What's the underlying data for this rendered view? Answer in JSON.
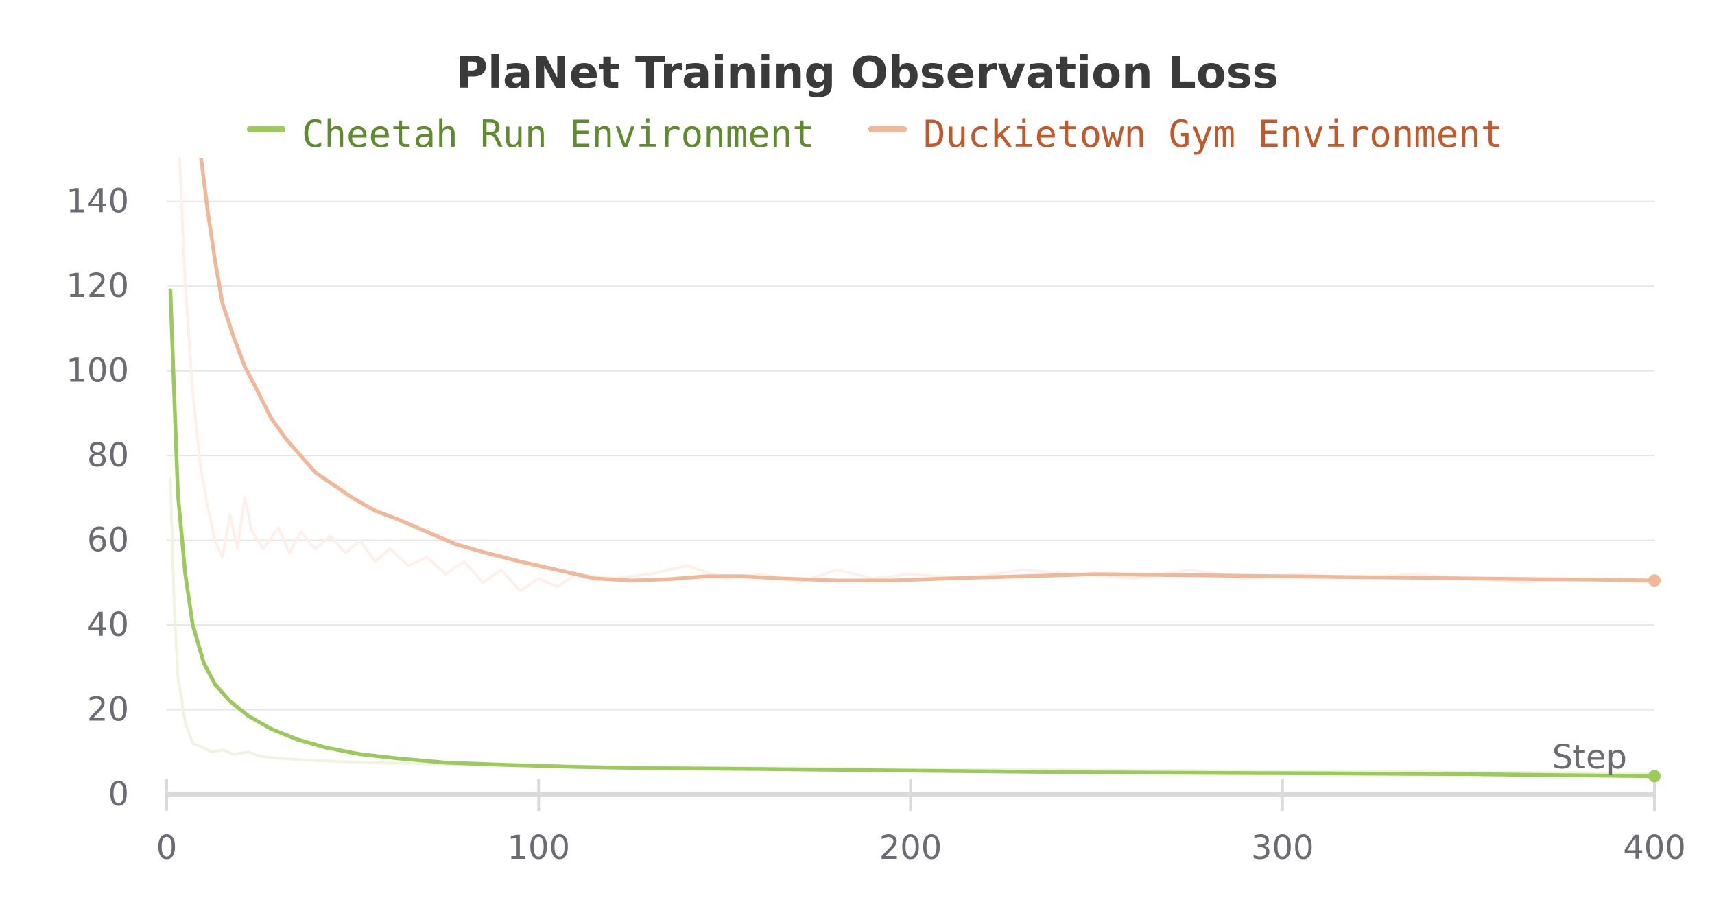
{
  "chart_data": {
    "type": "line",
    "title": "PlaNet Training Observation Loss",
    "xlabel": "Step",
    "ylabel": "",
    "xlim": [
      0,
      400
    ],
    "ylim": [
      0,
      150
    ],
    "x_ticks": [
      0,
      100,
      200,
      300,
      400
    ],
    "y_ticks": [
      0,
      20,
      40,
      60,
      80,
      100,
      120,
      140
    ],
    "grid": true,
    "legend_position": "top",
    "series": [
      {
        "name": "Cheetah Run Environment",
        "color": "#9bc95b",
        "text_color": "#5f8a2e",
        "raw_color": "#eef4e0",
        "smoothed": [
          [
            1,
            119
          ],
          [
            3,
            71
          ],
          [
            5,
            52
          ],
          [
            7,
            40
          ],
          [
            10,
            31
          ],
          [
            13,
            26
          ],
          [
            17,
            22
          ],
          [
            22,
            18.5
          ],
          [
            28,
            15.5
          ],
          [
            35,
            13
          ],
          [
            43,
            11
          ],
          [
            52,
            9.5
          ],
          [
            62,
            8.5
          ],
          [
            75,
            7.5
          ],
          [
            90,
            7
          ],
          [
            110,
            6.5
          ],
          [
            130,
            6.2
          ],
          [
            160,
            6
          ],
          [
            200,
            5.6
          ],
          [
            250,
            5.2
          ],
          [
            300,
            5
          ],
          [
            350,
            4.8
          ],
          [
            400,
            4.3
          ]
        ],
        "raw": [
          [
            1,
            75
          ],
          [
            2,
            45
          ],
          [
            3,
            28
          ],
          [
            5,
            17
          ],
          [
            7,
            12
          ],
          [
            10,
            11
          ],
          [
            12,
            10
          ],
          [
            15,
            10.5
          ],
          [
            18,
            9.5
          ],
          [
            22,
            10
          ],
          [
            25,
            9
          ],
          [
            30,
            8.5
          ],
          [
            40,
            8
          ],
          [
            55,
            7.5
          ],
          [
            80,
            7
          ],
          [
            120,
            6.5
          ],
          [
            200,
            6
          ],
          [
            300,
            5.5
          ],
          [
            400,
            5
          ]
        ],
        "last_value": 4.3
      },
      {
        "name": "Duckietown Gym Environment",
        "color": "#f0b898",
        "text_color": "#c1592b",
        "raw_color": "#fdf0ea",
        "smoothed": [
          [
            9,
            152
          ],
          [
            11,
            138
          ],
          [
            13,
            126
          ],
          [
            15,
            116
          ],
          [
            18,
            108
          ],
          [
            21,
            101
          ],
          [
            24,
            96
          ],
          [
            28,
            89
          ],
          [
            32,
            84
          ],
          [
            36,
            80
          ],
          [
            40,
            76
          ],
          [
            45,
            73
          ],
          [
            50,
            70
          ],
          [
            56,
            67
          ],
          [
            62,
            65
          ],
          [
            70,
            62
          ],
          [
            78,
            59
          ],
          [
            86,
            57
          ],
          [
            95,
            55
          ],
          [
            105,
            53
          ],
          [
            115,
            51
          ],
          [
            125,
            50.5
          ],
          [
            135,
            50.8
          ],
          [
            145,
            51.5
          ],
          [
            155,
            51.5
          ],
          [
            165,
            51
          ],
          [
            180,
            50.5
          ],
          [
            195,
            50.5
          ],
          [
            210,
            51
          ],
          [
            230,
            51.5
          ],
          [
            250,
            52
          ],
          [
            270,
            51.8
          ],
          [
            290,
            51.6
          ],
          [
            310,
            51.4
          ],
          [
            330,
            51.2
          ],
          [
            350,
            51
          ],
          [
            370,
            50.8
          ],
          [
            385,
            50.7
          ],
          [
            400,
            50.5
          ]
        ],
        "raw": [
          [
            3,
            160
          ],
          [
            5,
            120
          ],
          [
            7,
            95
          ],
          [
            9,
            78
          ],
          [
            11,
            68
          ],
          [
            13,
            60
          ],
          [
            15,
            56
          ],
          [
            17,
            66
          ],
          [
            19,
            58
          ],
          [
            21,
            70
          ],
          [
            23,
            62
          ],
          [
            26,
            58
          ],
          [
            30,
            63
          ],
          [
            33,
            57
          ],
          [
            36,
            62
          ],
          [
            40,
            58
          ],
          [
            44,
            61
          ],
          [
            48,
            57
          ],
          [
            52,
            60
          ],
          [
            56,
            55
          ],
          [
            60,
            58
          ],
          [
            65,
            54
          ],
          [
            70,
            56
          ],
          [
            75,
            52
          ],
          [
            80,
            55
          ],
          [
            85,
            50
          ],
          [
            90,
            53
          ],
          [
            95,
            48
          ],
          [
            100,
            51
          ],
          [
            105,
            49
          ],
          [
            110,
            52
          ],
          [
            120,
            51
          ],
          [
            130,
            52
          ],
          [
            140,
            54
          ],
          [
            150,
            51
          ],
          [
            160,
            52
          ],
          [
            170,
            50
          ],
          [
            180,
            53
          ],
          [
            190,
            51
          ],
          [
            200,
            52
          ],
          [
            215,
            51
          ],
          [
            230,
            53
          ],
          [
            245,
            52
          ],
          [
            260,
            51
          ],
          [
            275,
            53
          ],
          [
            290,
            51
          ],
          [
            305,
            52
          ],
          [
            320,
            51
          ],
          [
            335,
            52
          ],
          [
            350,
            51
          ],
          [
            365,
            50
          ],
          [
            380,
            51
          ],
          [
            400,
            50
          ]
        ],
        "last_value": 50.5
      }
    ]
  }
}
